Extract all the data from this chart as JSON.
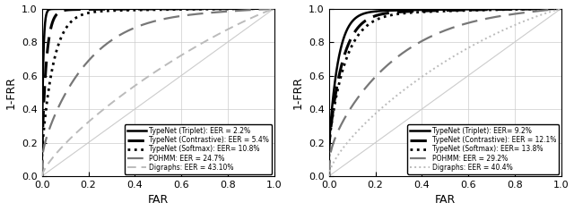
{
  "left": {
    "curves": [
      {
        "label": "TypeNet (Triplet): EER = 2.2%",
        "eer": 0.022,
        "linestyle": "-",
        "color": "#000000",
        "linewidth": 1.8,
        "alpha": 1.0,
        "concavity": 0.12
      },
      {
        "label": "TypeNet (Contrastive): EER = 5.4%",
        "eer": 0.054,
        "linestyle": "--",
        "color": "#000000",
        "linewidth": 2.2,
        "alpha": 1.0,
        "concavity": 0.15,
        "dashes": [
          6,
          3
        ]
      },
      {
        "label": "TypeNet (Softmax): EER= 10.8%",
        "eer": 0.108,
        "linestyle": ":",
        "color": "#000000",
        "linewidth": 2.0,
        "alpha": 1.0,
        "concavity": 0.2
      },
      {
        "label": "POHMM: EER = 24.7%",
        "eer": 0.247,
        "linestyle": "--",
        "color": "#777777",
        "linewidth": 1.6,
        "alpha": 1.0,
        "concavity": 0.38,
        "dashes": [
          8,
          4
        ]
      },
      {
        "label": "Digraphs: EER = 43.10%",
        "eer": 0.431,
        "linestyle": "--",
        "color": "#bbbbbb",
        "linewidth": 1.4,
        "alpha": 1.0,
        "concavity": 0.7,
        "dashes": [
          5,
          3
        ]
      }
    ],
    "xlabel": "FAR",
    "ylabel": "1-FRR",
    "xticks": [
      0,
      0.2,
      0.4,
      0.6,
      0.8,
      1
    ],
    "yticks": [
      0,
      0.2,
      0.4,
      0.6,
      0.8,
      1
    ],
    "legend_loc": "lower right"
  },
  "right": {
    "curves": [
      {
        "label": "TypeNet (Triplet): EER= 9.2%",
        "eer": 0.092,
        "linestyle": "-",
        "color": "#000000",
        "linewidth": 1.8,
        "alpha": 1.0,
        "concavity": 0.22
      },
      {
        "label": "TypeNet (Contrastive): EER = 12.1%",
        "eer": 0.121,
        "linestyle": "--",
        "color": "#000000",
        "linewidth": 2.2,
        "alpha": 1.0,
        "concavity": 0.26,
        "dashes": [
          6,
          3
        ]
      },
      {
        "label": "TypeNet (Softmax): EER= 13.8%",
        "eer": 0.138,
        "linestyle": ":",
        "color": "#000000",
        "linewidth": 2.0,
        "alpha": 1.0,
        "concavity": 0.3
      },
      {
        "label": "POHMM: EER = 29.2%",
        "eer": 0.292,
        "linestyle": "--",
        "color": "#777777",
        "linewidth": 1.6,
        "alpha": 1.0,
        "concavity": 0.5,
        "dashes": [
          8,
          4
        ]
      },
      {
        "label": "Digraphs: EER = 40.4%",
        "eer": 0.404,
        "linestyle": ":",
        "color": "#bbbbbb",
        "linewidth": 1.4,
        "alpha": 1.0,
        "concavity": 0.65
      }
    ],
    "xlabel": "FAR",
    "ylabel": "1-FRR",
    "xticks": [
      0,
      0.2,
      0.4,
      0.6,
      0.8,
      1
    ],
    "yticks": [
      0,
      0.2,
      0.4,
      0.6,
      0.8,
      1
    ],
    "legend_loc": "lower right"
  },
  "figsize": [
    6.4,
    2.36
  ],
  "dpi": 100
}
